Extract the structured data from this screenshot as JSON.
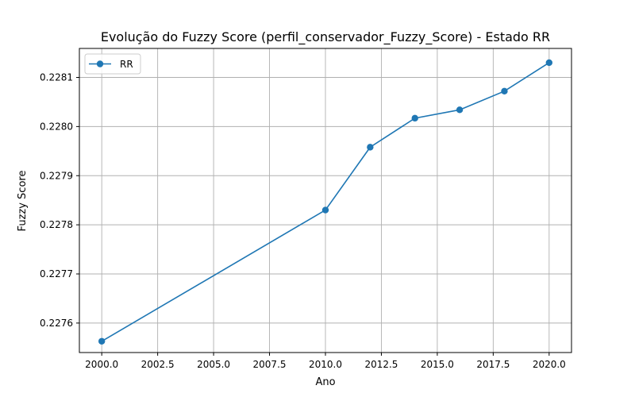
{
  "chart_data": {
    "type": "line",
    "title": "Evolução do Fuzzy Score (perfil_conservador_Fuzzy_Score) - Estado RR",
    "xlabel": "Ano",
    "ylabel": "Fuzzy Score",
    "xlim": [
      1999,
      2021
    ],
    "ylim": [
      0.22754,
      0.228159
    ],
    "x_ticks": [
      2000,
      2002.5,
      2005,
      2007.5,
      2010,
      2012.5,
      2015,
      2017.5,
      2020
    ],
    "x_tick_labels": [
      "2000.0",
      "2002.5",
      "2005.0",
      "2007.5",
      "2010.0",
      "2012.5",
      "2015.0",
      "2017.5",
      "2020.0"
    ],
    "y_ticks": [
      0.2276,
      0.2277,
      0.2278,
      0.2279,
      0.228,
      0.2281
    ],
    "y_tick_labels": [
      "0.2276",
      "0.2277",
      "0.2278",
      "0.2279",
      "0.2280",
      "0.2281"
    ],
    "grid": true,
    "legend_position": "upper-left",
    "series": [
      {
        "name": "RR",
        "color": "#1f77b4",
        "marker": "circle",
        "x": [
          2000,
          2010,
          2012,
          2014,
          2016,
          2018,
          2020
        ],
        "values": [
          0.227563,
          0.22783,
          0.227958,
          0.228017,
          0.228034,
          0.228072,
          0.22813
        ]
      }
    ]
  }
}
